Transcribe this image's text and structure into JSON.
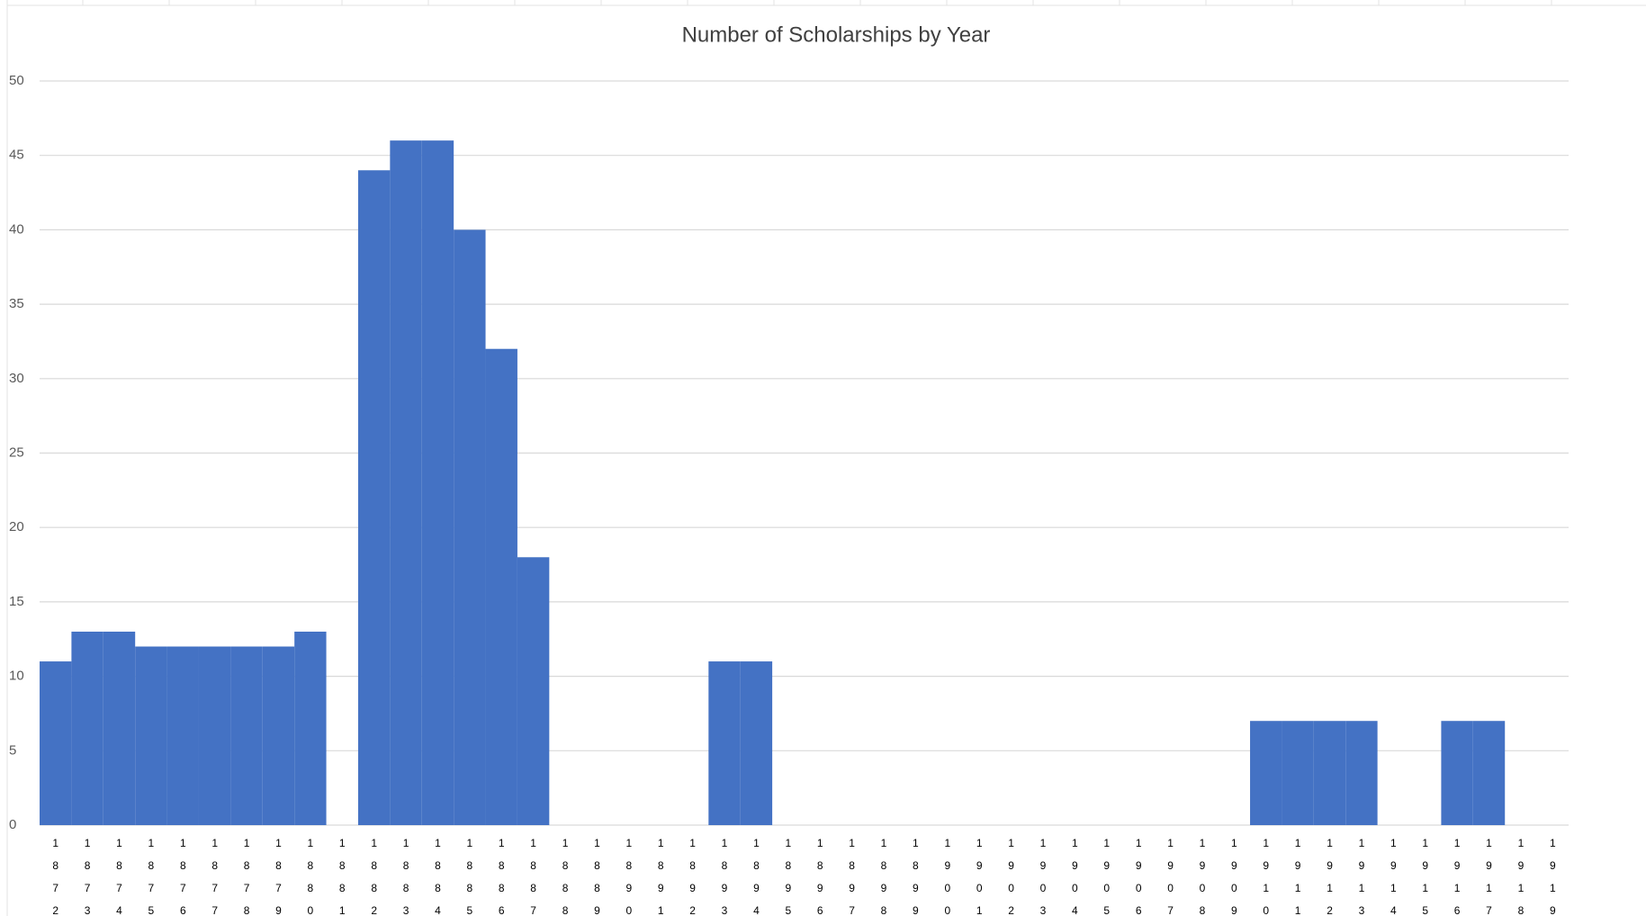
{
  "chart_data": {
    "type": "bar",
    "title": "Number of Scholarships by Year",
    "categories": [
      "1872",
      "1873",
      "1874",
      "1875",
      "1876",
      "1877",
      "1878",
      "1879",
      "1880",
      "1881",
      "1882",
      "1883",
      "1884",
      "1885",
      "1886",
      "1887",
      "1888",
      "1889",
      "1890",
      "1891",
      "1892",
      "1893",
      "1894",
      "1895",
      "1896",
      "1897",
      "1898",
      "1899",
      "1900",
      "1901",
      "1902",
      "1903",
      "1904",
      "1905",
      "1906",
      "1907",
      "1908",
      "1909",
      "1910",
      "1911",
      "1912",
      "1913",
      "1914",
      "1915",
      "1916",
      "1917",
      "1918",
      "1919"
    ],
    "values": [
      11,
      13,
      13,
      12,
      12,
      12,
      12,
      12,
      13,
      0,
      44,
      46,
      46,
      40,
      32,
      18,
      0,
      0,
      0,
      0,
      0,
      11,
      11,
      0,
      0,
      0,
      0,
      0,
      0,
      0,
      0,
      0,
      0,
      0,
      0,
      0,
      0,
      0,
      7,
      7,
      7,
      7,
      0,
      0,
      7,
      7,
      0,
      0
    ],
    "color": "#4472c4",
    "ylim": [
      0,
      50
    ],
    "yticks": [
      0,
      5,
      10,
      15,
      20,
      25,
      30,
      35,
      40,
      45,
      50
    ],
    "grid": true
  }
}
